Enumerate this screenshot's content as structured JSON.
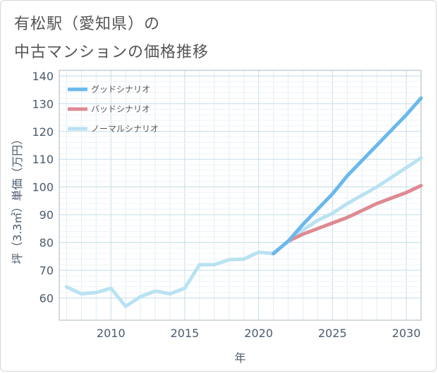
{
  "title_line1": "有松駅（愛知県）の",
  "title_line2": "中古マンションの価格推移",
  "chart_data": {
    "type": "line",
    "xlabel": "年",
    "ylabel": "坪（3.3㎡）単価（万円）",
    "xlim": [
      2006.5,
      2031
    ],
    "ylim": [
      52,
      142
    ],
    "x_ticks": [
      2010,
      2015,
      2020,
      2025,
      2030
    ],
    "y_ticks": [
      60,
      70,
      80,
      90,
      100,
      110,
      120,
      130,
      140
    ],
    "grid": true,
    "legend_position": "top-left",
    "series": [
      {
        "name": "グッドシナリオ",
        "color": "#6ab8ec",
        "x": [
          2021,
          2022,
          2023,
          2024,
          2025,
          2026,
          2027,
          2028,
          2029,
          2030,
          2031
        ],
        "y": [
          76.0,
          80.5,
          86.5,
          92.0,
          97.5,
          104.0,
          109.5,
          115.0,
          120.5,
          126.0,
          132.0
        ]
      },
      {
        "name": "バッドシナリオ",
        "color": "#de8a93",
        "x": [
          2021,
          2022,
          2023,
          2024,
          2025,
          2026,
          2027,
          2028,
          2029,
          2030,
          2031
        ],
        "y": [
          76.0,
          80.5,
          83.0,
          85.0,
          87.0,
          89.0,
          91.5,
          94.0,
          96.0,
          98.0,
          100.5
        ]
      },
      {
        "name": "ノーマルシナリオ",
        "color": "#b9e2f2",
        "x": [
          2007,
          2008,
          2009,
          2010,
          2011,
          2012,
          2013,
          2014,
          2015,
          2016,
          2017,
          2018,
          2019,
          2020,
          2021,
          2022,
          2023,
          2024,
          2025,
          2026,
          2027,
          2028,
          2029,
          2030,
          2031
        ],
        "y": [
          64.0,
          61.5,
          62.0,
          63.5,
          57.0,
          60.5,
          62.5,
          61.5,
          63.5,
          72.0,
          72.0,
          73.8,
          74.0,
          76.5,
          76.0,
          80.5,
          84.5,
          88.0,
          90.5,
          94.0,
          97.0,
          100.0,
          103.5,
          107.0,
          110.5
        ]
      }
    ]
  }
}
